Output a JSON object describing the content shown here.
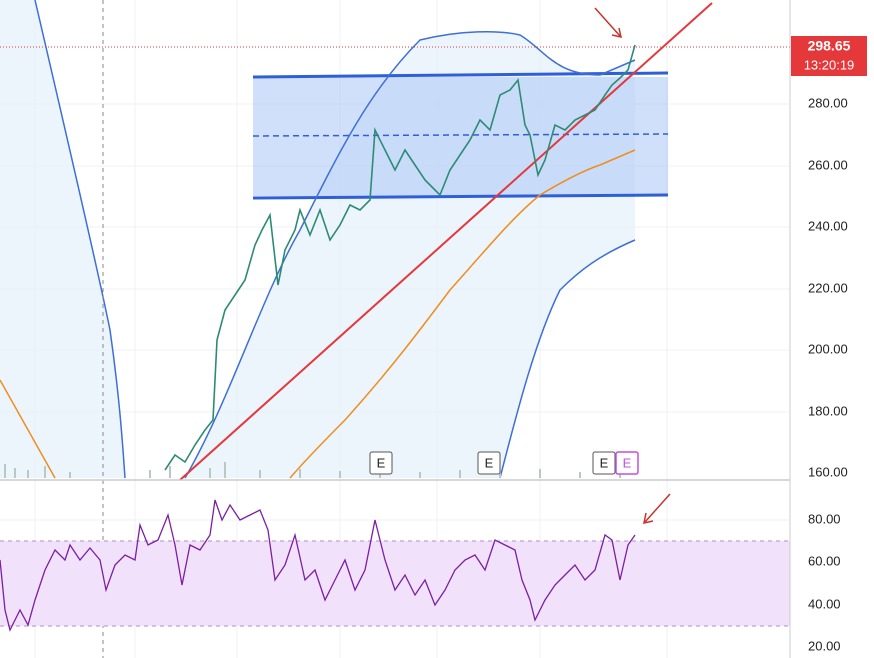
{
  "price_label": {
    "price": "298.65",
    "countdown": "13:20:19"
  },
  "price_axis": [
    "280.00",
    "260.00",
    "240.00",
    "220.00",
    "200.00",
    "180.00",
    "160.00"
  ],
  "rsi_axis": [
    "80.00",
    "60.00",
    "40.00",
    "20.00"
  ],
  "earnings_markers": [
    "E",
    "E",
    "E",
    "E"
  ]
}
